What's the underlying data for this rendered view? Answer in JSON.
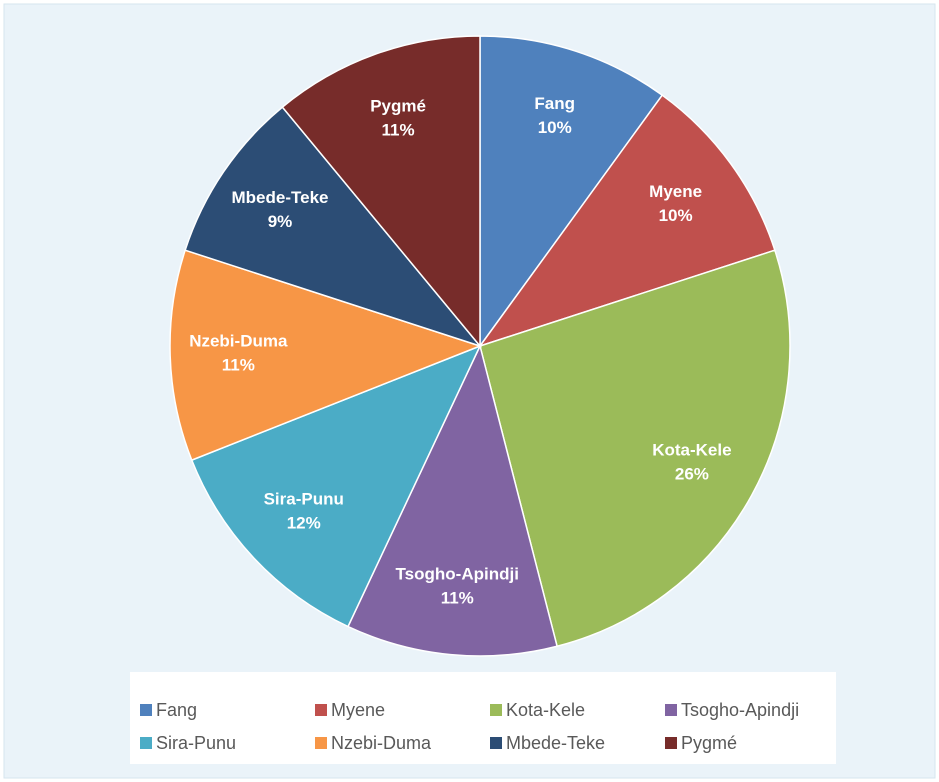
{
  "chart_data": {
    "type": "pie",
    "categories": [
      "Fang",
      "Myene",
      "Kota-Kele",
      "Tsogho-Apindji",
      "Sira-Punu",
      "Nzebi-Duma",
      "Mbede-Teke",
      "Pygmé"
    ],
    "values": [
      10,
      10,
      26,
      11,
      12,
      11,
      9,
      11
    ],
    "value_labels": [
      "10%",
      "10%",
      "26%",
      "11%",
      "12%",
      "11%",
      "9%",
      "11%"
    ],
    "colors": [
      "#4f81bd",
      "#c0504d",
      "#9bbb59",
      "#8064a2",
      "#4bacc6",
      "#f79646",
      "#2c4d75",
      "#772c2a"
    ],
    "legend": "bottom"
  }
}
